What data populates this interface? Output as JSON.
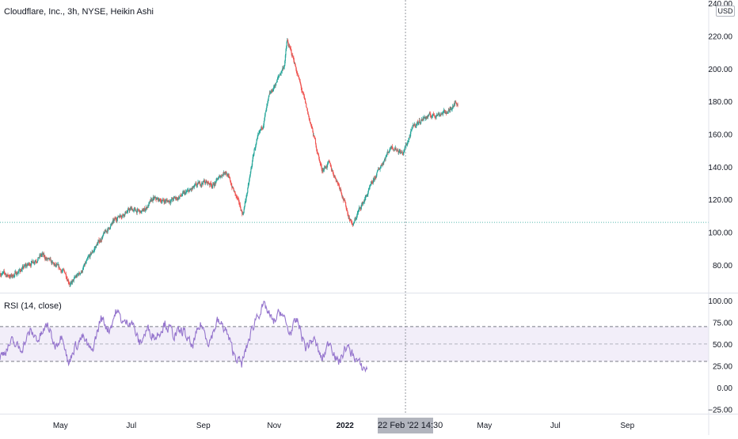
{
  "chart_data": [
    {
      "type": "candlestick",
      "title": "Cloudflare, Inc., 3h, NYSE, Heikin Ashi",
      "currency": "USD",
      "y_axis_labels": [
        "240.00",
        "220.00",
        "200.00",
        "180.00",
        "160.00",
        "140.00",
        "120.00",
        "100.00",
        "80.00"
      ],
      "y_ticks": [
        240,
        220,
        200,
        180,
        160,
        140,
        120,
        100,
        80
      ],
      "ylim": [
        63,
        242
      ],
      "x_axis_labels": [
        "May",
        "Jul",
        "Sep",
        "Nov",
        "2022",
        "May",
        "Jul",
        "Sep"
      ],
      "x_ticks": [
        "2021-05-01",
        "2021-07-01",
        "2021-09-01",
        "2021-11-01",
        "2022-01-01",
        "2022-05-01",
        "2022-07-01",
        "2022-09-01"
      ],
      "xlim": [
        "2021-03-10",
        "2022-11-10"
      ],
      "reference_line": 106,
      "up_color": "#26a69a",
      "down_color": "#ef5350",
      "series": [
        {
          "x": [
            "2021-03-10",
            "2021-03-20",
            "2021-04-01",
            "2021-04-15",
            "2021-04-25",
            "2021-05-05",
            "2021-05-10",
            "2021-05-14",
            "2021-05-20",
            "2021-06-01",
            "2021-06-10",
            "2021-06-20",
            "2021-07-01",
            "2021-07-10",
            "2021-07-20",
            "2021-08-01",
            "2021-08-10",
            "2021-08-20",
            "2021-09-01",
            "2021-09-10",
            "2021-09-20",
            "2021-09-28",
            "2021-10-05",
            "2021-10-10",
            "2021-10-15",
            "2021-10-22",
            "2021-10-28",
            "2021-11-05",
            "2021-11-10",
            "2021-11-12",
            "2021-11-18",
            "2021-11-25",
            "2021-12-01",
            "2021-12-06",
            "2021-12-12",
            "2021-12-18",
            "2021-12-24",
            "2021-12-28",
            "2022-01-04",
            "2022-01-08",
            "2022-01-12",
            "2022-01-20",
            "2022-02-01",
            "2022-02-10",
            "2022-02-20",
            "2022-03-01",
            "2022-03-10",
            "2022-03-20",
            "2022-04-01",
            "2022-04-05",
            "2022-04-08"
          ],
          "close": [
            75,
            73,
            79,
            86,
            80,
            75,
            68,
            72,
            77,
            92,
            101,
            110,
            114,
            112,
            120,
            119,
            121,
            125,
            131,
            129,
            138,
            124,
            111,
            129,
            151,
            165,
            183,
            195,
            203,
            217,
            205,
            186,
            170,
            156,
            138,
            142,
            133,
            127,
            110,
            104,
            112,
            123,
            141,
            153,
            148,
            165,
            170,
            172,
            174,
            180,
            178
          ]
        }
      ]
    },
    {
      "type": "line",
      "title": "RSI (14, close)",
      "y_axis_labels": [
        "100.00",
        "75.00",
        "50.00",
        "25.00",
        "0.00",
        "−25.00"
      ],
      "y_ticks": [
        100,
        75,
        50,
        25,
        0,
        -25
      ],
      "ylim": [
        -30,
        108
      ],
      "band": [
        30,
        70
      ],
      "midline": 50,
      "line_color": "#9575cd",
      "series": [
        {
          "x": [
            "2021-03-10",
            "2021-03-20",
            "2021-03-28",
            "2021-04-05",
            "2021-04-12",
            "2021-04-20",
            "2021-04-26",
            "2021-05-03",
            "2021-05-08",
            "2021-05-12",
            "2021-05-20",
            "2021-05-28",
            "2021-06-05",
            "2021-06-12",
            "2021-06-18",
            "2021-06-25",
            "2021-07-01",
            "2021-07-08",
            "2021-07-15",
            "2021-07-22",
            "2021-07-30",
            "2021-08-07",
            "2021-08-15",
            "2021-08-22",
            "2021-08-30",
            "2021-09-06",
            "2021-09-13",
            "2021-09-20",
            "2021-09-27",
            "2021-10-04",
            "2021-10-10",
            "2021-10-17",
            "2021-10-24",
            "2021-10-31",
            "2021-11-07",
            "2021-11-14",
            "2021-11-21",
            "2021-11-28",
            "2021-12-05",
            "2021-12-12",
            "2021-12-19",
            "2021-12-26",
            "2022-01-02",
            "2022-01-09",
            "2022-01-15",
            "2022-01-20"
          ],
          "values": [
            35,
            52,
            44,
            64,
            55,
            72,
            48,
            62,
            25,
            44,
            58,
            40,
            80,
            66,
            88,
            73,
            78,
            50,
            67,
            58,
            74,
            60,
            65,
            46,
            73,
            52,
            76,
            67,
            40,
            26,
            54,
            83,
            94,
            74,
            88,
            62,
            77,
            46,
            56,
            32,
            54,
            27,
            47,
            36,
            23,
            21
          ]
        }
      ]
    }
  ],
  "cursor": {
    "date": "2022-02-22",
    "label": "22 Feb '22  14:30"
  }
}
